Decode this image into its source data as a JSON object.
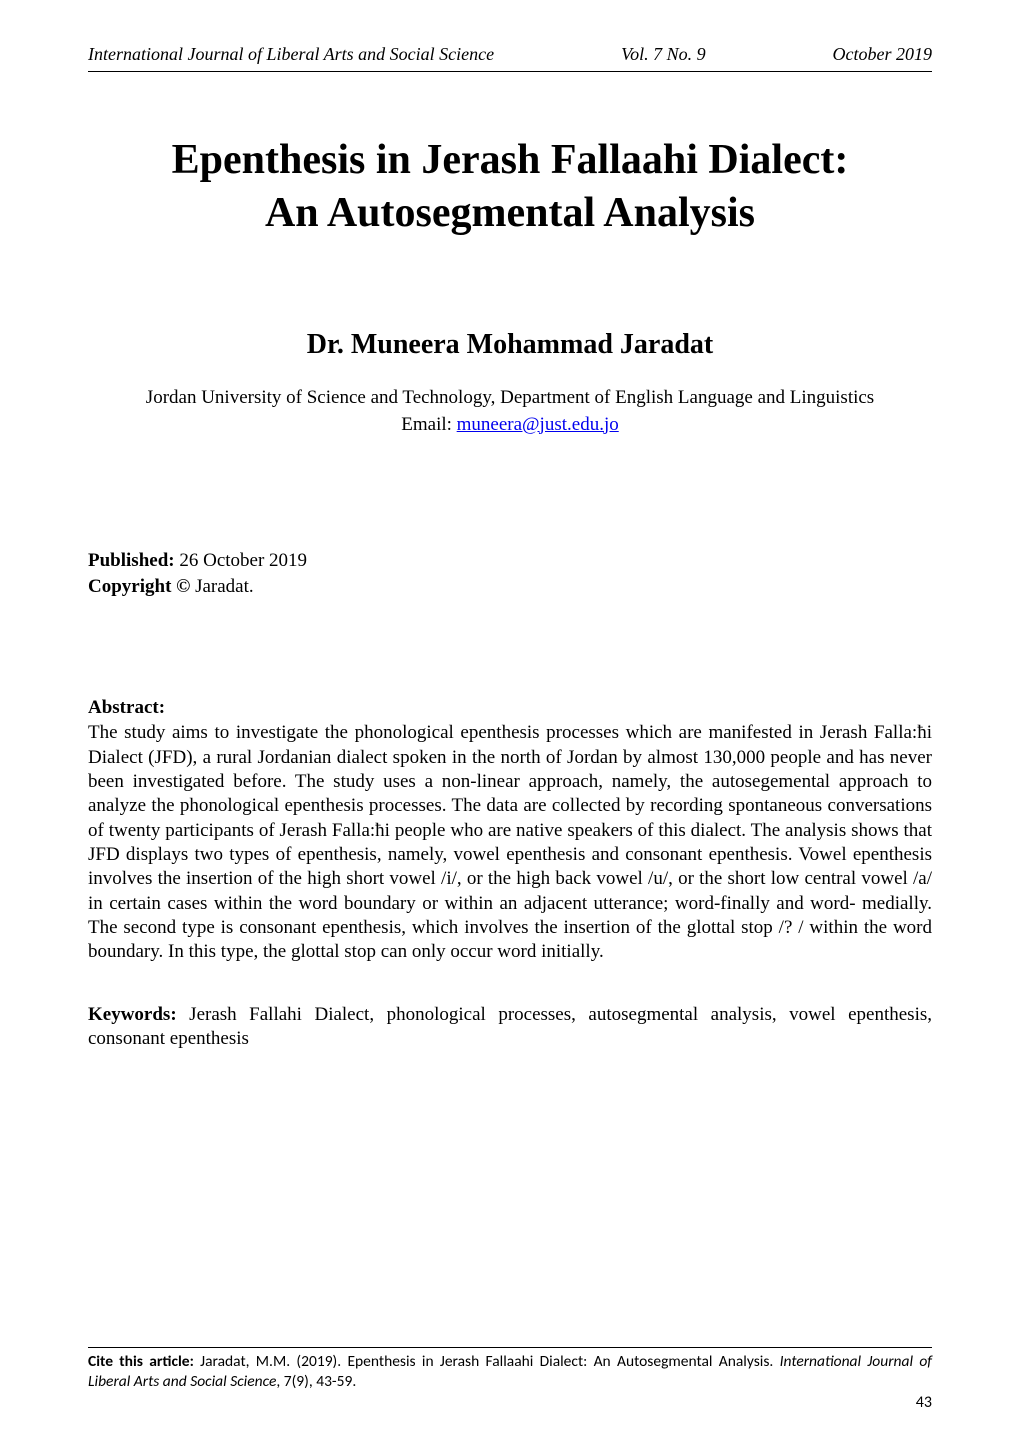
{
  "running_head": {
    "left": "International Journal of Liberal Arts and Social Science",
    "center": "Vol. 7 No. 9",
    "right": "October 2019"
  },
  "title_line1": "Epenthesis in Jerash Fallaahi Dialect:",
  "title_line2": "An Autosegmental Analysis",
  "author": "Dr. Muneera Mohammad Jaradat",
  "affiliation_line1": "Jordan University of Science and Technology, Department of English Language and Linguistics",
  "email_label": "Email: ",
  "email": "muneera@just.edu.jo",
  "published_label": "Published:",
  "published_value": " 26 October 2019",
  "copyright_label": "Copyright ©",
  "copyright_value": " Jaradat.",
  "abstract_heading": "Abstract:",
  "abstract_body": "The study aims to investigate the phonological epenthesis processes which are manifested in Jerash Falla:ħi Dialect (JFD), a rural Jordanian dialect spoken in the north of Jordan by almost 130,000 people and has never been investigated before. The study uses a non-linear approach, namely, the autosegemental approach to analyze the phonological epenthesis processes. The data are collected by recording spontaneous conversations of twenty participants of Jerash Falla:ħi people who are native speakers of this dialect. The analysis shows that JFD displays two types of epenthesis, namely, vowel epenthesis and consonant epenthesis. Vowel epenthesis involves the insertion of the high short vowel /i/, or the high back vowel /u/, or the short low central vowel /a/ in certain cases within the word boundary or within an adjacent utterance; word-finally and word- medially. The second type is consonant epenthesis, which involves the insertion of the glottal stop /? / within the word boundary. In this type, the glottal stop can only occur word initially.",
  "keywords_label": "Keywords:",
  "keywords_body": " Jerash Fallahi Dialect, phonological processes, autosegmental analysis, vowel epenthesis, consonant epenthesis",
  "cite_label": "Cite this article:",
  "cite_text": " Jaradat, M.M. (2019). Epenthesis in Jerash Fallaahi Dialect: An Autosegmental Analysis. ",
  "cite_journal": "International Journal of Liberal Arts and Social Science",
  "cite_tail": ", 7(9), 43-59.",
  "page_number": "43"
}
